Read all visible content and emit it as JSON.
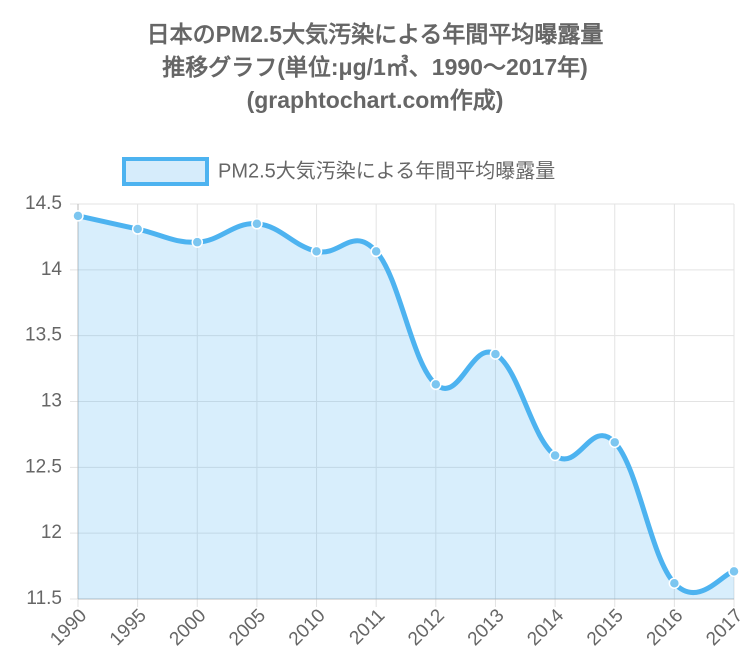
{
  "chart_data": {
    "type": "line",
    "title": [
      "日本のPM2.5大気汚染による年間平均曝露量",
      "推移グラフ(単位:μg/1㎥、1990〜2017年)",
      "(graphtochart.com作成)"
    ],
    "categories": [
      "1990",
      "1995",
      "2000",
      "2005",
      "2010",
      "2011",
      "2012",
      "2013",
      "2014",
      "2015",
      "2016",
      "2017"
    ],
    "series": [
      {
        "name": "PM2.5大気汚染による年間平均曝露量",
        "color": "#4db3f0",
        "values": [
          14.41,
          14.31,
          14.21,
          14.35,
          14.14,
          14.14,
          13.13,
          13.36,
          12.59,
          12.69,
          11.62,
          11.71
        ]
      }
    ],
    "ylim": [
      11.5,
      14.5
    ],
    "yticks": [
      11.5,
      12,
      12.5,
      13,
      13.5,
      14,
      14.5
    ],
    "grid": true,
    "legend": "top",
    "fill": true
  }
}
